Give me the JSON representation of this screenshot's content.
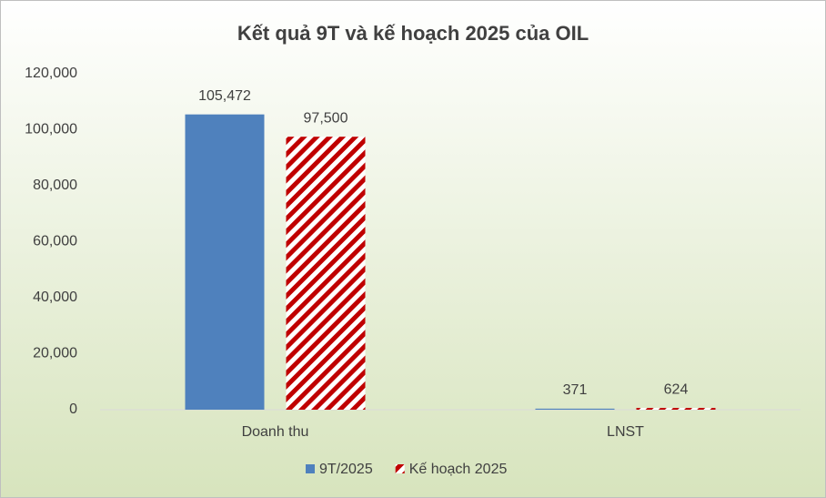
{
  "chart_data": {
    "type": "bar",
    "title": "Kết quả 9T và kế hoạch 2025 của OIL",
    "categories": [
      "Doanh thu",
      "LNST"
    ],
    "series": [
      {
        "name": "9T/2025",
        "color": "#4f81bd",
        "values": [
          105472,
          371
        ],
        "value_labels": [
          "105,472",
          "371"
        ]
      },
      {
        "name": "Kế hoạch 2025",
        "color": "#c00000",
        "pattern": "hatch",
        "values": [
          97500,
          624
        ],
        "value_labels": [
          "97,500",
          "624"
        ]
      }
    ],
    "ylim": [
      0,
      120000
    ],
    "yticks": [
      0,
      {
        "value": 20000,
        "label": "20,000"
      },
      {
        "value": 40000,
        "label": "40,000"
      },
      {
        "value": 60000,
        "label": "60,000"
      },
      {
        "value": 80000,
        "label": "80,000"
      },
      {
        "value": 100000,
        "label": "100,000"
      },
      {
        "value": 120000,
        "label": "120,000"
      }
    ],
    "grid": false,
    "legend": "bottom"
  }
}
